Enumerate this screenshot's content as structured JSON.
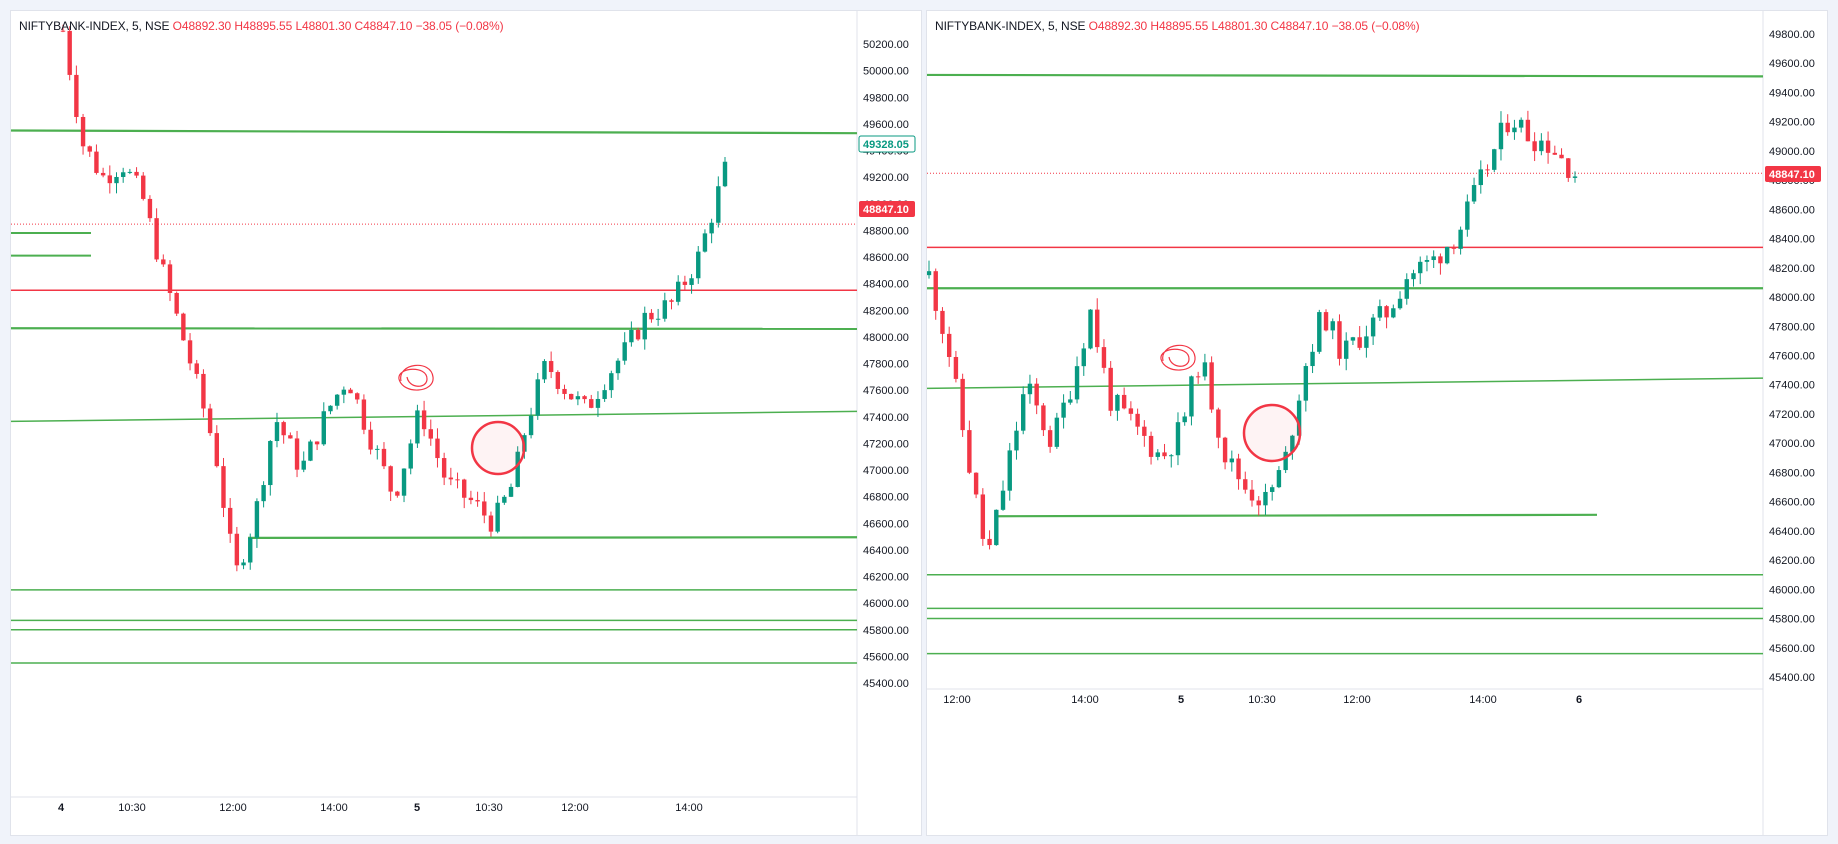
{
  "colors": {
    "up": "#089981",
    "down": "#f23645",
    "support_line": "#4caf50",
    "resistance_line": "#f23645",
    "price_tag_bg": "#f23645",
    "price_tag_alt": "#089981",
    "axis_text": "#131722",
    "annotation": "#f23645"
  },
  "panes": [
    {
      "id": "left",
      "header": {
        "symbol": "NIFTYBANK-INDEX, 5, NSE",
        "open": "O48892.30",
        "high": "H48895.55",
        "low": "L48801.30",
        "close": "C48847.10",
        "change": "−38.05 (−0.08%)"
      },
      "y_axis_labels": [
        "50200.00",
        "50000.00",
        "49800.00",
        "49600.00",
        "49400.00",
        "49200.00",
        "49000.00",
        "48800.00",
        "48600.00",
        "48400.00",
        "48200.00",
        "48000.00",
        "47800.00",
        "47600.00",
        "47400.00",
        "47200.00",
        "47000.00",
        "46800.00",
        "46600.00",
        "46400.00",
        "46200.00",
        "46000.00",
        "45800.00",
        "45600.00",
        "45400.00"
      ],
      "price_tags": [
        "49328.05",
        "48847.10"
      ],
      "x_axis_labels": [
        "4",
        "10:30",
        "12:00",
        "14:00",
        "5",
        "10:30",
        "12:00",
        "14:00"
      ]
    },
    {
      "id": "right",
      "header": {
        "symbol": "NIFTYBANK-INDEX, 5, NSE",
        "open": "O48892.30",
        "high": "H48895.55",
        "low": "L48801.30",
        "close": "C48847.10",
        "change": "−38.05 (−0.08%)"
      },
      "y_axis_labels": [
        "49800.00",
        "49600.00",
        "49400.00",
        "49200.00",
        "49000.00",
        "48800.00",
        "48600.00",
        "48400.00",
        "48200.00",
        "48000.00",
        "47800.00",
        "47600.00",
        "47400.00",
        "47200.00",
        "47000.00",
        "46800.00",
        "46600.00",
        "46400.00",
        "46200.00",
        "46000.00",
        "45800.00",
        "45600.00",
        "45400.00"
      ],
      "price_tags": [
        "48847.10"
      ],
      "x_axis_labels": [
        "12:00",
        "14:00",
        "5",
        "10:30",
        "12:00",
        "14:00",
        "6"
      ]
    }
  ]
}
